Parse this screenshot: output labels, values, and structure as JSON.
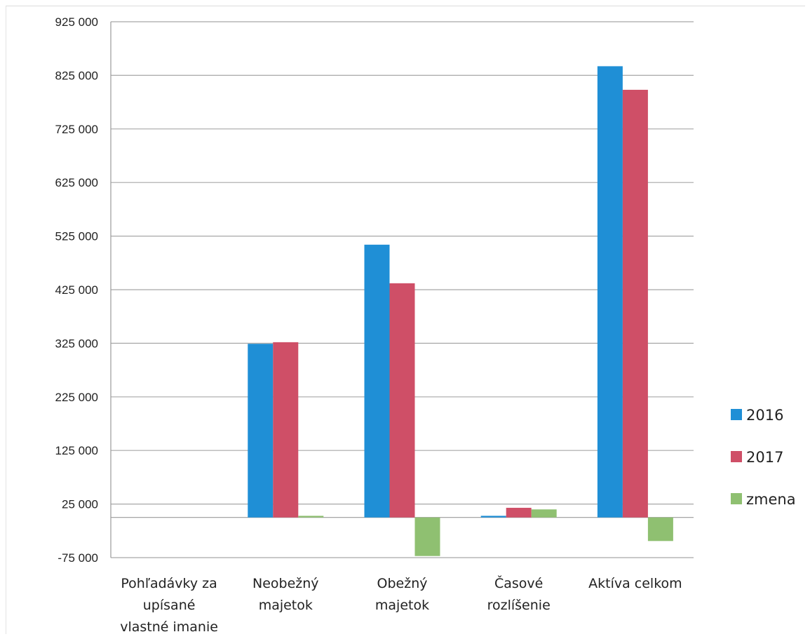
{
  "chart_data": {
    "type": "bar",
    "categories": [
      "Pohľadávky za upísané vlastné imanie",
      "Neobežný majetok",
      "Obežný majetok",
      "Časové rozlíšenie",
      "Aktíva celkom"
    ],
    "category_lines": [
      [
        "Pohľadávky za",
        "upísané",
        "vlastné imanie"
      ],
      [
        "Neobežný",
        "majetok"
      ],
      [
        "Obežný",
        "majetok"
      ],
      [
        "Časové",
        "rozlíšenie"
      ],
      [
        "Aktíva celkom"
      ]
    ],
    "series": [
      {
        "name": "2016",
        "color": "#1f8fd6",
        "values": [
          0,
          324000,
          509000,
          3000,
          842000
        ]
      },
      {
        "name": "2017",
        "color": "#cf4f67",
        "values": [
          0,
          327000,
          437000,
          18000,
          798000
        ]
      },
      {
        "name": "zmena",
        "color": "#8fc071",
        "values": [
          0,
          3000,
          -72000,
          15000,
          -44000
        ]
      }
    ],
    "ylim": [
      -75000,
      925000
    ],
    "yticks": [
      -75000,
      25000,
      125000,
      225000,
      325000,
      425000,
      525000,
      625000,
      725000,
      825000,
      925000
    ],
    "ytick_labels": [
      "-75 000",
      "25 000",
      "125 000",
      "225 000",
      "325 000",
      "425 000",
      "525 000",
      "625 000",
      "725 000",
      "825 000",
      "925 000"
    ],
    "grid": true,
    "legend_position": "right",
    "title": "",
    "xlabel": "",
    "ylabel": ""
  }
}
